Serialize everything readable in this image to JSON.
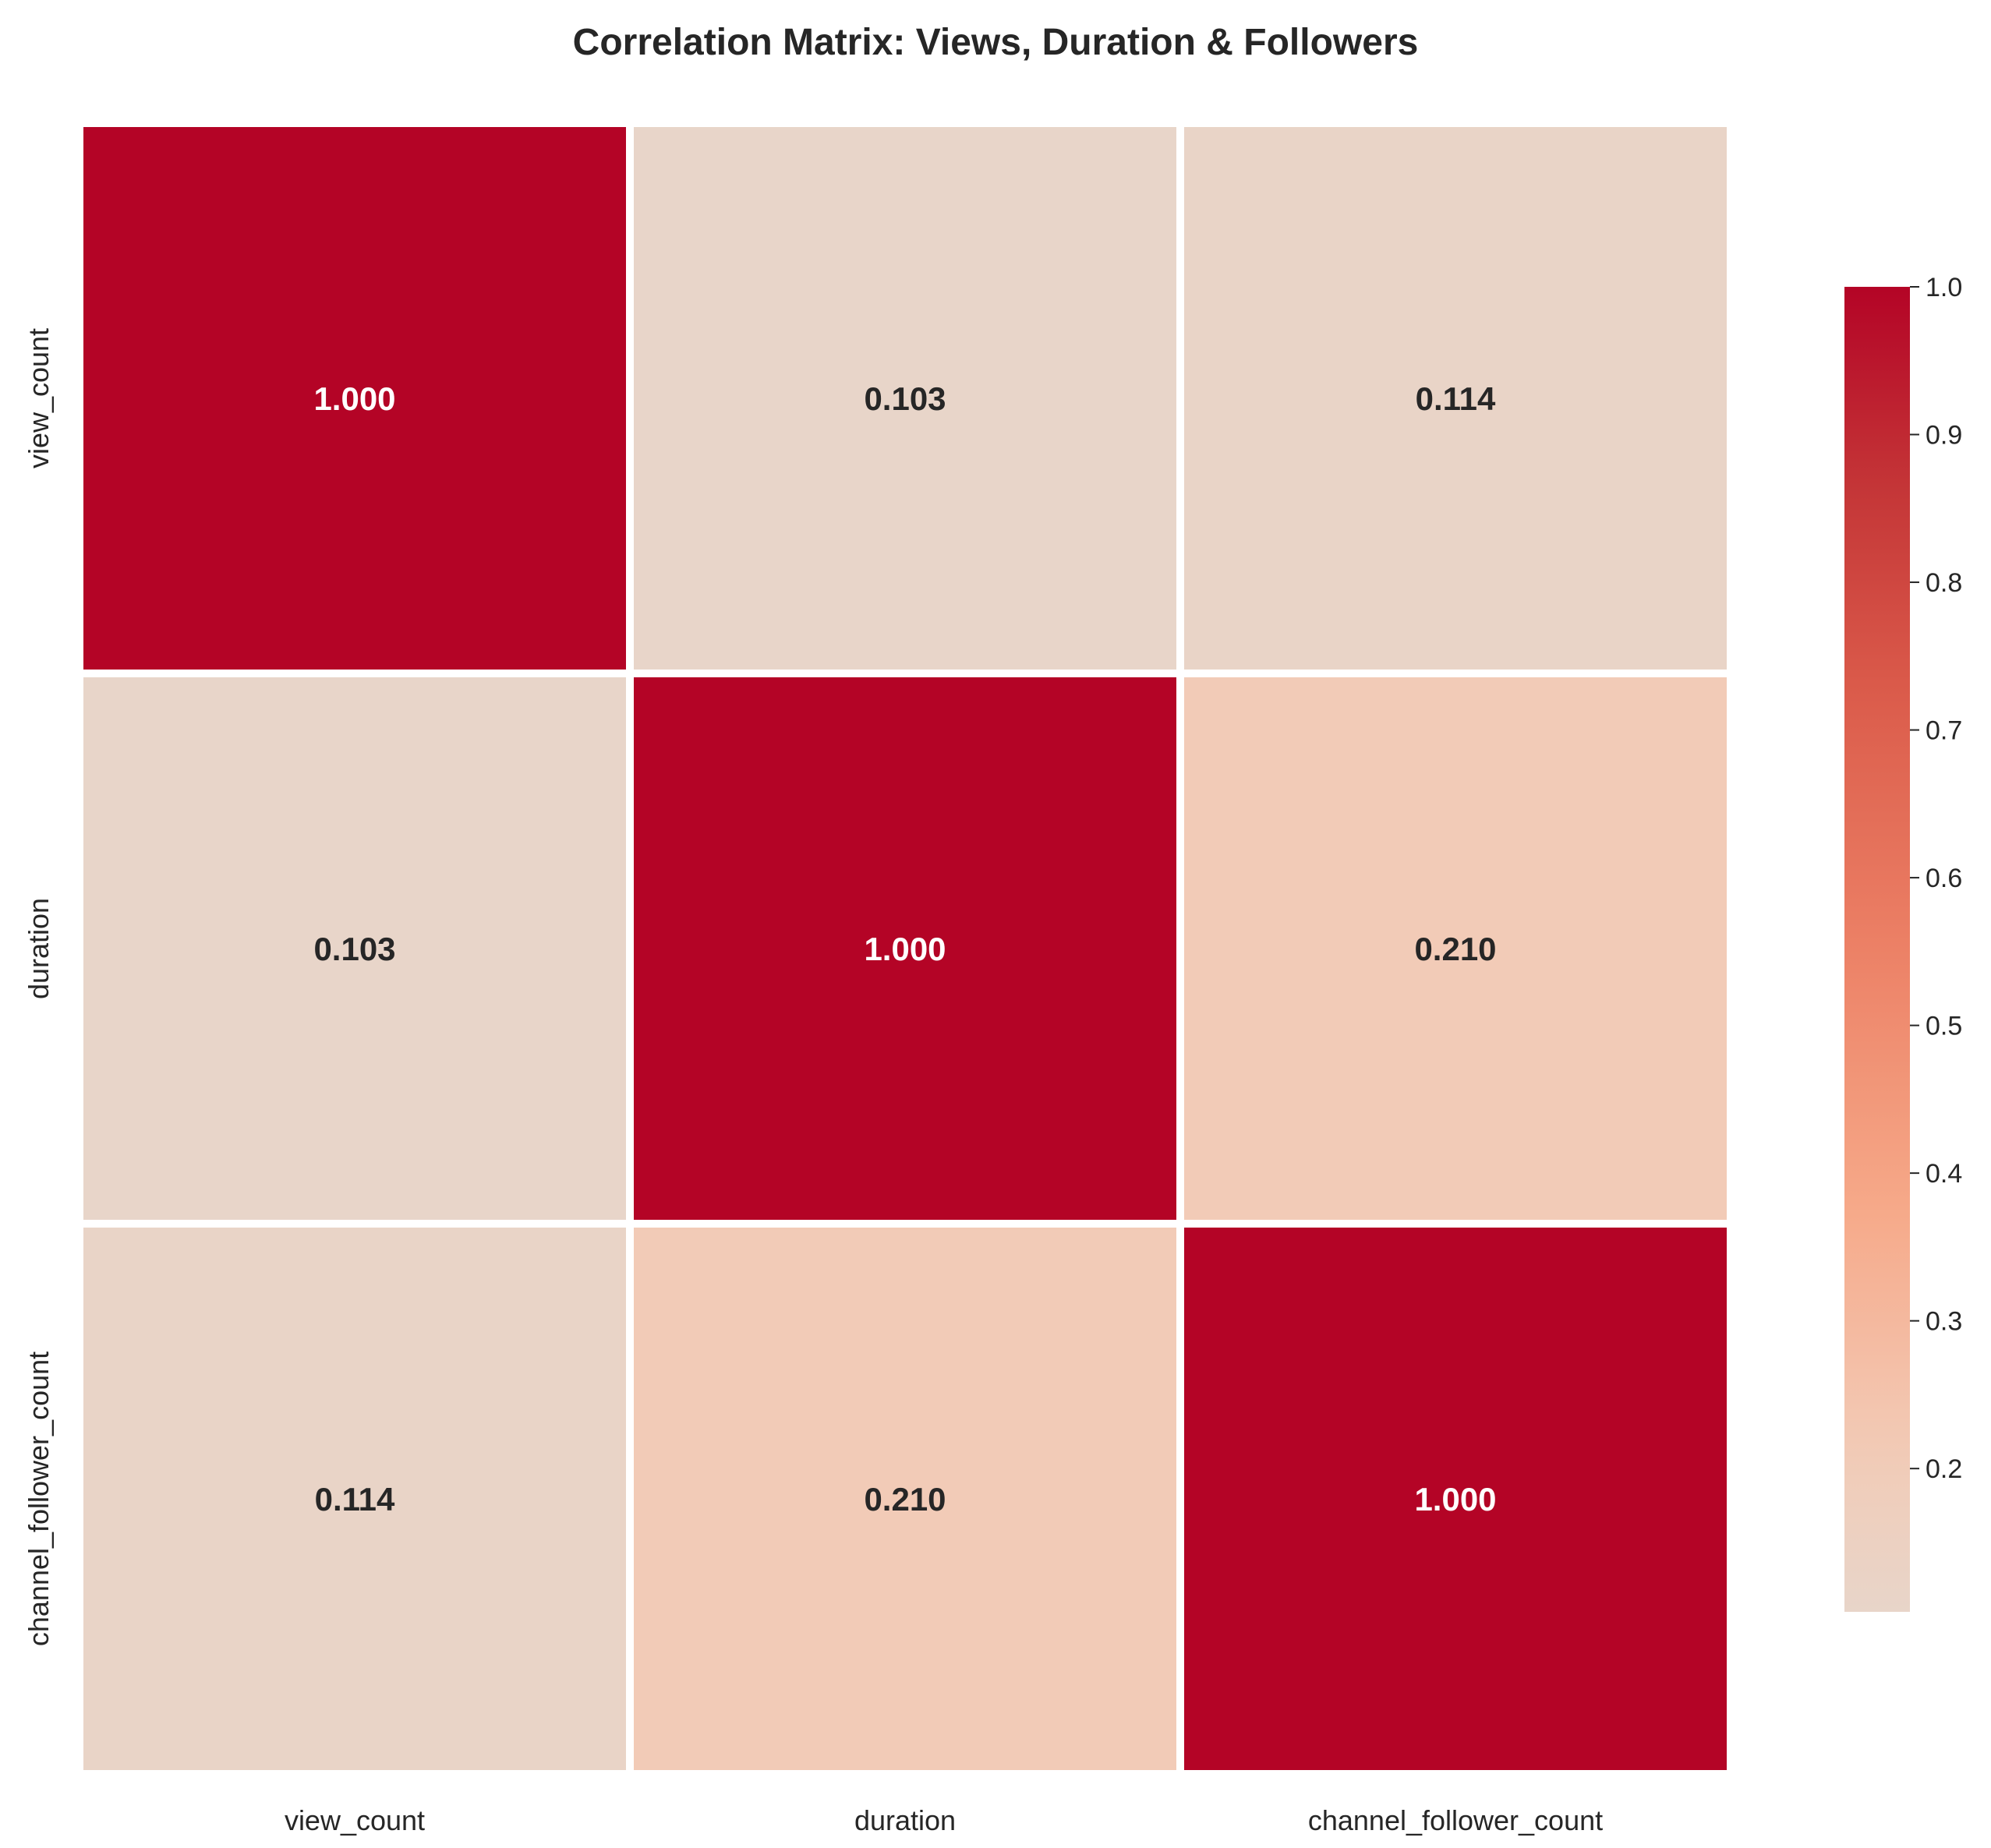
{
  "chart_data": {
    "type": "heatmap",
    "title": "Correlation Matrix: Views, Duration & Followers",
    "xlabel": "",
    "ylabel": "",
    "x_categories": [
      "view_count",
      "duration",
      "channel_follower_count"
    ],
    "y_categories": [
      "view_count",
      "duration",
      "channel_follower_count"
    ],
    "values": [
      [
        1.0,
        0.103,
        0.114
      ],
      [
        0.103,
        1.0,
        0.21
      ],
      [
        0.114,
        0.21,
        1.0
      ]
    ],
    "annotation_format": "3 decimals",
    "colorbar": {
      "colormap": "coolwarm (upper half)",
      "range": [
        0.103,
        1.0
      ],
      "ticks": [
        "0.2",
        "0.3",
        "0.4",
        "0.5",
        "0.6",
        "0.7",
        "0.8",
        "0.9",
        "1.0"
      ],
      "placement": "right"
    },
    "colors": {
      "low": "#e8d5c9",
      "high": "#b40426",
      "cell_border": "#ffffff",
      "text_dark": "#262626",
      "text_light": "#ffffff"
    }
  }
}
